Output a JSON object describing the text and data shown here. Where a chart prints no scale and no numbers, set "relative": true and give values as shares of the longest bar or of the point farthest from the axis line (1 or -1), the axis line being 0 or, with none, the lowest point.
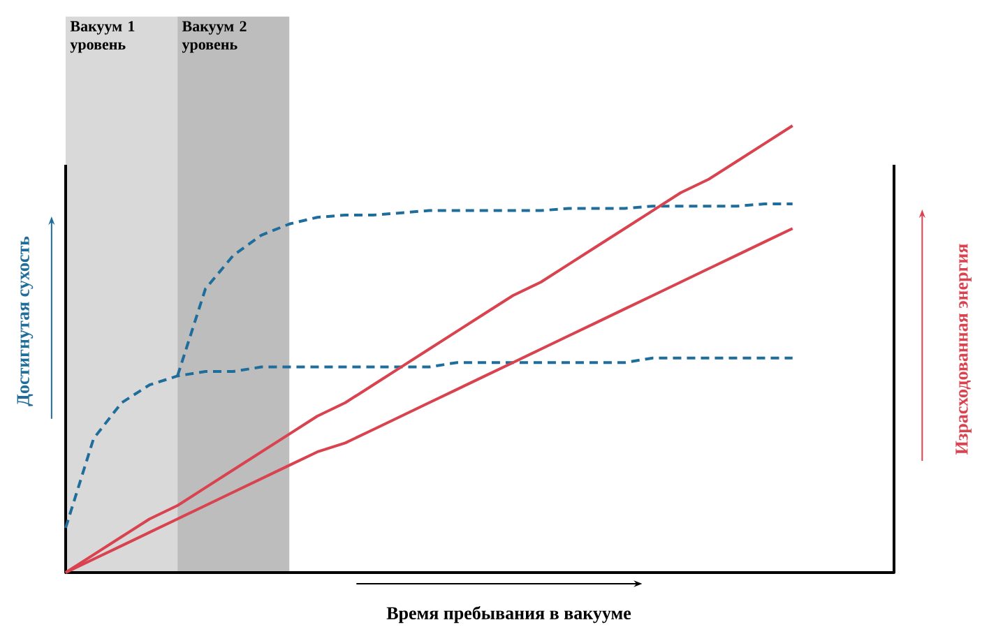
{
  "chart_data": {
    "type": "line",
    "relative": true,
    "xlabel": "Время пребывания в вакууме",
    "ylabel": "Достигнутая сухость",
    "categories": [
      null,
      null,
      null,
      null,
      null,
      null,
      null,
      null,
      null,
      null,
      null,
      null,
      null,
      null,
      null,
      null,
      null,
      null,
      null,
      null,
      null,
      null,
      null,
      null,
      null,
      null,
      null
    ],
    "series": [
      {
        "color": "#1f6d9b",
        "line_style": "dashed",
        "values": [
          0.1,
          0.3,
          0.38,
          0.42,
          0.44,
          0.45,
          0.45,
          0.46,
          0.46,
          0.46,
          0.46,
          0.46,
          0.46,
          0.46,
          0.47,
          0.47,
          0.47,
          0.47,
          0.47,
          0.47,
          0.47,
          0.48,
          0.48,
          0.48,
          0.48,
          0.48,
          0.48
        ]
      },
      {
        "color": "#1f6d9b",
        "line_style": "dashed",
        "values": [
          null,
          null,
          null,
          null,
          0.44,
          0.635,
          0.71,
          0.755,
          0.78,
          0.795,
          0.8,
          0.8,
          0.805,
          0.81,
          0.81,
          0.81,
          0.81,
          0.81,
          0.815,
          0.815,
          0.815,
          0.82,
          0.82,
          0.82,
          0.82,
          0.825,
          0.825
        ]
      },
      {
        "color": "#d9434f",
        "line_style": "solid",
        "values": [
          0,
          0.04,
          0.08,
          0.12,
          0.15,
          0.19,
          0.23,
          0.27,
          0.31,
          0.35,
          0.38,
          0.42,
          0.46,
          0.5,
          0.54,
          0.58,
          0.62,
          0.65,
          0.69,
          0.73,
          0.77,
          0.81,
          0.85,
          0.88,
          0.92,
          0.96,
          1
        ]
      },
      {
        "color": "#d9434f",
        "line_style": "solid",
        "values": [
          0,
          0.03,
          0.06,
          0.09,
          0.12,
          0.15,
          0.18,
          0.21,
          0.24,
          0.27,
          0.29,
          0.32,
          0.35,
          0.38,
          0.41,
          0.44,
          0.47,
          0.5,
          0.53,
          0.56,
          0.59,
          0.62,
          0.65,
          0.68,
          0.71,
          0.74,
          0.77
        ]
      }
    ],
    "annotations": [
      "Вакуум 1 уровень",
      "Вакуум 2 уровень",
      "Израсходованная энергия"
    ]
  }
}
